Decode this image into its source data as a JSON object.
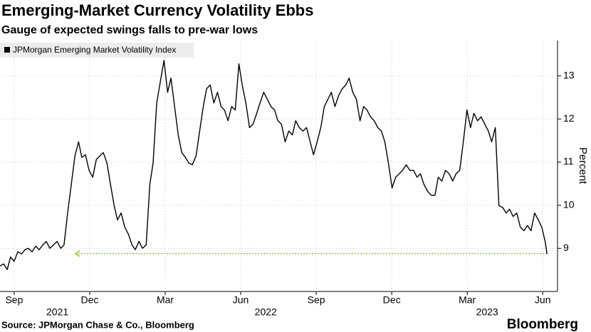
{
  "chart_data": {
    "type": "line",
    "title": "Emerging-Market Currency Volatility Ebbs",
    "subtitle": "Gauge of expected swings falls to pre-war lows",
    "source": "Source: JPMorgan Chase & Co., Bloomberg",
    "brand": "Bloomberg",
    "y_axis_label": "Percent",
    "xlim": [
      2021.62,
      2023.466
    ],
    "ylim": [
      8.0,
      13.82
    ],
    "xticks": [
      {
        "value": 2021.667,
        "label": "Sep"
      },
      {
        "value": 2021.917,
        "label": "Dec"
      },
      {
        "value": 2022.167,
        "label": "Mar"
      },
      {
        "value": 2022.417,
        "label": "Jun"
      },
      {
        "value": 2022.667,
        "label": "Sep"
      },
      {
        "value": 2022.917,
        "label": "Dec"
      },
      {
        "value": 2023.167,
        "label": "Mar"
      },
      {
        "value": 2023.417,
        "label": "Jun"
      }
    ],
    "year_labels": [
      2021,
      2022,
      2023
    ],
    "yticks": [
      9,
      10,
      11,
      12,
      13
    ],
    "grid": true,
    "legend": "top-left",
    "reference_line": {
      "value": 8.88,
      "x": [
        2021.87,
        2023.431
      ],
      "color": "#8bd100"
    },
    "x": [
      2021.62,
      2021.632,
      2021.644,
      2021.655,
      2021.667,
      2021.679,
      2021.691,
      2021.703,
      2021.714,
      2021.726,
      2021.738,
      2021.75,
      2021.762,
      2021.773,
      2021.785,
      2021.797,
      2021.809,
      2021.821,
      2021.832,
      2021.844,
      2021.856,
      2021.868,
      2021.88,
      2021.891,
      2021.903,
      2021.915,
      2021.927,
      2021.939,
      2021.95,
      2021.962,
      2021.974,
      2021.986,
      2021.998,
      2022.009,
      2022.021,
      2022.033,
      2022.045,
      2022.057,
      2022.068,
      2022.08,
      2022.092,
      2022.104,
      2022.116,
      2022.127,
      2022.139,
      2022.151,
      2022.163,
      2022.175,
      2022.186,
      2022.198,
      2022.21,
      2022.222,
      2022.234,
      2022.245,
      2022.257,
      2022.269,
      2022.281,
      2022.293,
      2022.304,
      2022.316,
      2022.328,
      2022.34,
      2022.352,
      2022.363,
      2022.375,
      2022.387,
      2022.399,
      2022.411,
      2022.422,
      2022.434,
      2022.446,
      2022.458,
      2022.47,
      2022.481,
      2022.493,
      2022.505,
      2022.517,
      2022.529,
      2022.54,
      2022.552,
      2022.564,
      2022.576,
      2022.588,
      2022.599,
      2022.611,
      2022.623,
      2022.635,
      2022.647,
      2022.658,
      2022.67,
      2022.682,
      2022.694,
      2022.706,
      2022.717,
      2022.729,
      2022.741,
      2022.753,
      2022.765,
      2022.776,
      2022.788,
      2022.8,
      2022.812,
      2022.824,
      2022.835,
      2022.847,
      2022.859,
      2022.871,
      2022.883,
      2022.894,
      2022.906,
      2022.918,
      2022.93,
      2022.942,
      2022.953,
      2022.965,
      2022.977,
      2022.989,
      2023.001,
      2023.012,
      2023.024,
      2023.036,
      2023.048,
      2023.06,
      2023.071,
      2023.083,
      2023.095,
      2023.107,
      2023.119,
      2023.13,
      2023.142,
      2023.154,
      2023.166,
      2023.178,
      2023.189,
      2023.201,
      2023.213,
      2023.225,
      2023.237,
      2023.248,
      2023.26,
      2023.272,
      2023.284,
      2023.296,
      2023.307,
      2023.319,
      2023.331,
      2023.343,
      2023.355,
      2023.366,
      2023.378,
      2023.39,
      2023.402,
      2023.414,
      2023.425,
      2023.431
    ],
    "series": [
      {
        "name": "JPMorgan Emerging Market Volatility Index",
        "color": "#000000",
        "values": [
          8.59,
          8.64,
          8.51,
          8.8,
          8.7,
          8.92,
          8.87,
          8.97,
          9.0,
          8.92,
          9.05,
          8.97,
          9.08,
          9.16,
          9.0,
          9.08,
          9.16,
          9.0,
          9.08,
          9.82,
          10.48,
          11.14,
          11.47,
          11.11,
          11.17,
          10.81,
          10.65,
          11.06,
          11.14,
          11.22,
          10.98,
          10.48,
          9.99,
          9.66,
          9.82,
          9.49,
          9.33,
          9.08,
          8.97,
          9.16,
          9.0,
          9.08,
          10.48,
          10.98,
          12.37,
          12.87,
          13.36,
          12.62,
          12.95,
          12.29,
          11.63,
          11.22,
          11.11,
          10.98,
          10.94,
          11.14,
          11.72,
          12.29,
          12.7,
          12.79,
          12.37,
          12.62,
          12.29,
          12.21,
          11.96,
          12.29,
          12.21,
          13.28,
          12.79,
          12.37,
          11.8,
          11.88,
          12.13,
          12.37,
          12.62,
          12.46,
          12.29,
          12.21,
          11.96,
          11.88,
          11.47,
          11.72,
          11.63,
          11.96,
          11.8,
          11.72,
          11.8,
          11.47,
          11.17,
          11.47,
          11.8,
          12.29,
          12.46,
          12.62,
          12.29,
          12.54,
          12.7,
          12.79,
          12.95,
          12.62,
          12.46,
          11.96,
          12.29,
          12.21,
          12.05,
          11.96,
          11.8,
          11.72,
          11.47,
          10.98,
          10.4,
          10.65,
          10.73,
          10.81,
          10.94,
          10.81,
          10.81,
          10.65,
          10.73,
          10.48,
          10.32,
          10.23,
          10.23,
          10.65,
          10.56,
          10.81,
          10.73,
          10.56,
          10.73,
          10.81,
          11.47,
          12.21,
          11.8,
          12.13,
          11.96,
          12.05,
          11.88,
          11.72,
          11.47,
          11.8,
          9.99,
          9.95,
          9.82,
          9.91,
          9.74,
          9.82,
          9.49,
          9.41,
          9.53,
          9.41,
          9.82,
          9.66,
          9.49,
          9.16,
          8.87
        ]
      }
    ]
  }
}
